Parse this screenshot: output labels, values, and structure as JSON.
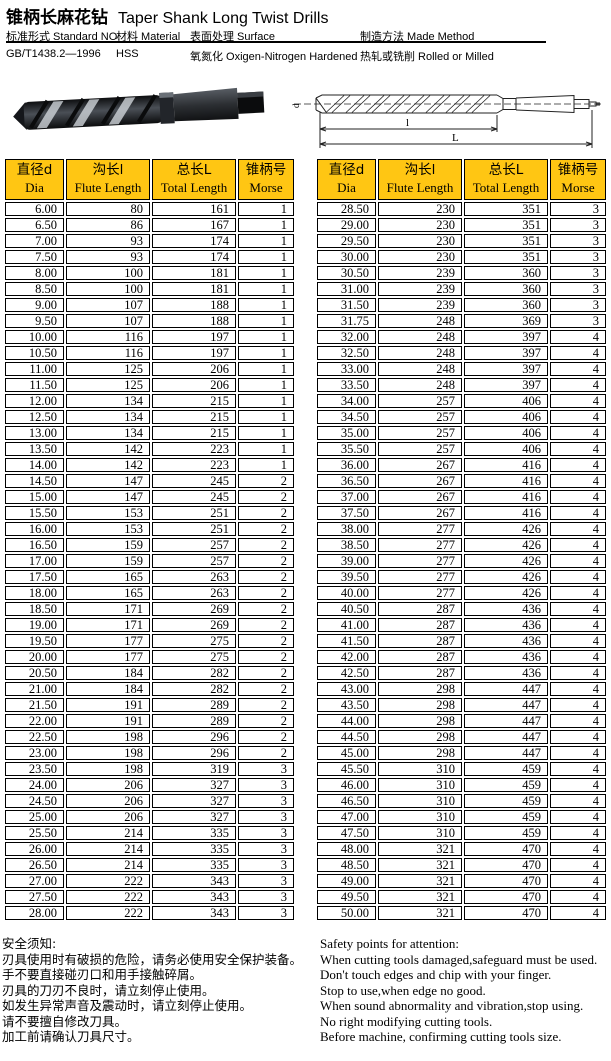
{
  "page": {
    "title_zh": "锥柄长麻花钻",
    "title_en": "Taper Shank Long Twist Drills"
  },
  "specs": {
    "columns": [
      {
        "label": "标准形式 Standard NO.",
        "value": "GB/T1438.2—1996"
      },
      {
        "label": "材料 Material",
        "value": "HSS"
      },
      {
        "label": "表面处理 Surface",
        "value": "氧氮化 Oxigen-Nitrogen Hardened"
      },
      {
        "label": "制造方法 Made Method",
        "value": "热轧或铣削  Rolled or Milled"
      }
    ]
  },
  "drawing": {
    "labels": {
      "diameter": "d",
      "flute": "l",
      "total": "L"
    }
  },
  "table_headers": {
    "dia_zh": "直径d",
    "dia_en": "Dia",
    "flute_zh": "沟长l",
    "flute_en": "Flute Length",
    "total_zh": "总长L",
    "total_en": "Total Length",
    "morse_zh": "锥柄号",
    "morse_en": "Morse"
  },
  "tables": {
    "left": {
      "rows": [
        [
          "6.00",
          "80",
          "161",
          "1"
        ],
        [
          "6.50",
          "86",
          "167",
          "1"
        ],
        [
          "7.00",
          "93",
          "174",
          "1"
        ],
        [
          "7.50",
          "93",
          "174",
          "1"
        ],
        [
          "8.00",
          "100",
          "181",
          "1"
        ],
        [
          "8.50",
          "100",
          "181",
          "1"
        ],
        [
          "9.00",
          "107",
          "188",
          "1"
        ],
        [
          "9.50",
          "107",
          "188",
          "1"
        ],
        [
          "10.00",
          "116",
          "197",
          "1"
        ],
        [
          "10.50",
          "116",
          "197",
          "1"
        ],
        [
          "11.00",
          "125",
          "206",
          "1"
        ],
        [
          "11.50",
          "125",
          "206",
          "1"
        ],
        [
          "12.00",
          "134",
          "215",
          "1"
        ],
        [
          "12.50",
          "134",
          "215",
          "1"
        ],
        [
          "13.00",
          "134",
          "215",
          "1"
        ],
        [
          "13.50",
          "142",
          "223",
          "1"
        ],
        [
          "14.00",
          "142",
          "223",
          "1"
        ],
        [
          "14.50",
          "147",
          "245",
          "2"
        ],
        [
          "15.00",
          "147",
          "245",
          "2"
        ],
        [
          "15.50",
          "153",
          "251",
          "2"
        ],
        [
          "16.00",
          "153",
          "251",
          "2"
        ],
        [
          "16.50",
          "159",
          "257",
          "2"
        ],
        [
          "17.00",
          "159",
          "257",
          "2"
        ],
        [
          "17.50",
          "165",
          "263",
          "2"
        ],
        [
          "18.00",
          "165",
          "263",
          "2"
        ],
        [
          "18.50",
          "171",
          "269",
          "2"
        ],
        [
          "19.00",
          "171",
          "269",
          "2"
        ],
        [
          "19.50",
          "177",
          "275",
          "2"
        ],
        [
          "20.00",
          "177",
          "275",
          "2"
        ],
        [
          "20.50",
          "184",
          "282",
          "2"
        ],
        [
          "21.00",
          "184",
          "282",
          "2"
        ],
        [
          "21.50",
          "191",
          "289",
          "2"
        ],
        [
          "22.00",
          "191",
          "289",
          "2"
        ],
        [
          "22.50",
          "198",
          "296",
          "2"
        ],
        [
          "23.00",
          "198",
          "296",
          "2"
        ],
        [
          "23.50",
          "198",
          "319",
          "3"
        ],
        [
          "24.00",
          "206",
          "327",
          "3"
        ],
        [
          "24.50",
          "206",
          "327",
          "3"
        ],
        [
          "25.00",
          "206",
          "327",
          "3"
        ],
        [
          "25.50",
          "214",
          "335",
          "3"
        ],
        [
          "26.00",
          "214",
          "335",
          "3"
        ],
        [
          "26.50",
          "214",
          "335",
          "3"
        ],
        [
          "27.00",
          "222",
          "343",
          "3"
        ],
        [
          "27.50",
          "222",
          "343",
          "3"
        ],
        [
          "28.00",
          "222",
          "343",
          "3"
        ]
      ]
    },
    "right": {
      "rows": [
        [
          "28.50",
          "230",
          "351",
          "3"
        ],
        [
          "29.00",
          "230",
          "351",
          "3"
        ],
        [
          "29.50",
          "230",
          "351",
          "3"
        ],
        [
          "30.00",
          "230",
          "351",
          "3"
        ],
        [
          "30.50",
          "239",
          "360",
          "3"
        ],
        [
          "31.00",
          "239",
          "360",
          "3"
        ],
        [
          "31.50",
          "239",
          "360",
          "3"
        ],
        [
          "31.75",
          "248",
          "369",
          "3"
        ],
        [
          "32.00",
          "248",
          "397",
          "4"
        ],
        [
          "32.50",
          "248",
          "397",
          "4"
        ],
        [
          "33.00",
          "248",
          "397",
          "4"
        ],
        [
          "33.50",
          "248",
          "397",
          "4"
        ],
        [
          "34.00",
          "257",
          "406",
          "4"
        ],
        [
          "34.50",
          "257",
          "406",
          "4"
        ],
        [
          "35.00",
          "257",
          "406",
          "4"
        ],
        [
          "35.50",
          "257",
          "406",
          "4"
        ],
        [
          "36.00",
          "267",
          "416",
          "4"
        ],
        [
          "36.50",
          "267",
          "416",
          "4"
        ],
        [
          "37.00",
          "267",
          "416",
          "4"
        ],
        [
          "37.50",
          "267",
          "416",
          "4"
        ],
        [
          "38.00",
          "277",
          "426",
          "4"
        ],
        [
          "38.50",
          "277",
          "426",
          "4"
        ],
        [
          "39.00",
          "277",
          "426",
          "4"
        ],
        [
          "39.50",
          "277",
          "426",
          "4"
        ],
        [
          "40.00",
          "277",
          "426",
          "4"
        ],
        [
          "40.50",
          "287",
          "436",
          "4"
        ],
        [
          "41.00",
          "287",
          "436",
          "4"
        ],
        [
          "41.50",
          "287",
          "436",
          "4"
        ],
        [
          "42.00",
          "287",
          "436",
          "4"
        ],
        [
          "42.50",
          "287",
          "436",
          "4"
        ],
        [
          "43.00",
          "298",
          "447",
          "4"
        ],
        [
          "43.50",
          "298",
          "447",
          "4"
        ],
        [
          "44.00",
          "298",
          "447",
          "4"
        ],
        [
          "44.50",
          "298",
          "447",
          "4"
        ],
        [
          "45.00",
          "298",
          "447",
          "4"
        ],
        [
          "45.50",
          "310",
          "459",
          "4"
        ],
        [
          "46.00",
          "310",
          "459",
          "4"
        ],
        [
          "46.50",
          "310",
          "459",
          "4"
        ],
        [
          "47.00",
          "310",
          "459",
          "4"
        ],
        [
          "47.50",
          "310",
          "459",
          "4"
        ],
        [
          "48.00",
          "321",
          "470",
          "4"
        ],
        [
          "48.50",
          "321",
          "470",
          "4"
        ],
        [
          "49.00",
          "321",
          "470",
          "4"
        ],
        [
          "49.50",
          "321",
          "470",
          "4"
        ],
        [
          "50.00",
          "321",
          "470",
          "4"
        ]
      ]
    }
  },
  "safety": {
    "zh": [
      "安全须知:",
      "刃具使用时有破损的危险，请务必使用安全保护装备。",
      "手不要直接碰刃口和用手接触碎屑。",
      "刃具的刀刃不良时，请立刻停止使用。",
      "如发生异常声音及震动时，请立刻停止使用。",
      "请不要擅自修改刀具。",
      "加工前请确认刀具尺寸。"
    ],
    "en": [
      "Safety points for attention:",
      "When cutting tools damaged,safeguard must be used.",
      "Don't touch edges and chip with your finger.",
      "Stop to use,when edge no good.",
      "When sound abnormality and vibration,stop using.",
      "No right modifying cutting tools.",
      "Before machine, confirming cutting tools size."
    ]
  },
  "colors": {
    "header_bg": "#FFC613",
    "border": "#000000"
  }
}
